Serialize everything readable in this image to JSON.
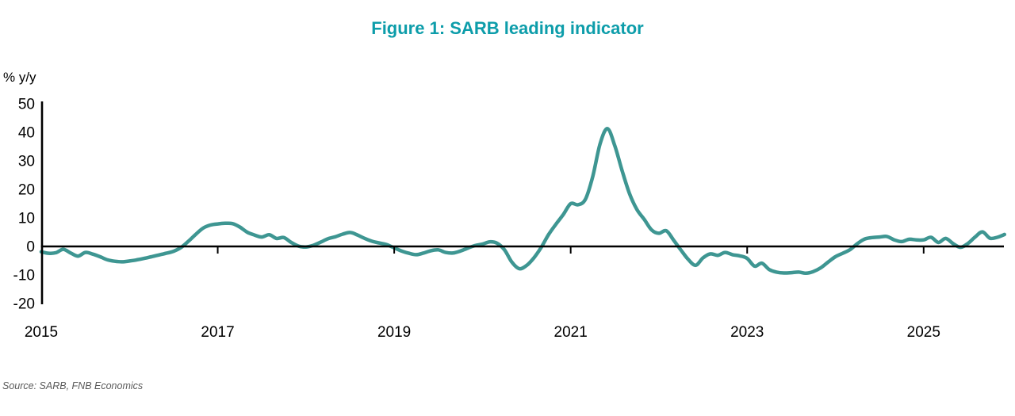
{
  "figure": {
    "title": "Figure 1: SARB leading indicator",
    "source": "Source: SARB, FNB Economics"
  },
  "colors": {
    "title_teal": "#0d9daa",
    "line_teal": "#3e9692",
    "axis_black": "#000000",
    "source_gray": "#5a5a5a"
  },
  "chart_data": {
    "type": "line",
    "title": "Figure 1: SARB leading indicator",
    "xlabel": "",
    "ylabel": "% y/y",
    "ylim": [
      -20,
      50
    ],
    "xlim": [
      2015,
      2026
    ],
    "grid": false,
    "legend": "none",
    "y_ticks": [
      50,
      40,
      30,
      20,
      10,
      0,
      -10,
      -20
    ],
    "x_ticks": [
      2015,
      2017,
      2019,
      2021,
      2023,
      2025
    ],
    "zero_line": true,
    "series": [
      {
        "name": "SARB leading indicator, % y/y",
        "color": "#3e9692",
        "start_year": 2015,
        "interval": "monthly",
        "values": [
          -1.9,
          -2.4,
          -2.2,
          -1.0,
          -2.3,
          -3.4,
          -2.1,
          -2.7,
          -3.6,
          -4.7,
          -5.2,
          -5.4,
          -5.1,
          -4.7,
          -4.2,
          -3.6,
          -3.0,
          -2.4,
          -1.7,
          -0.4,
          1.8,
          4.2,
          6.4,
          7.5,
          7.9,
          8.1,
          8.0,
          6.8,
          5.0,
          4.0,
          3.3,
          4.1,
          2.8,
          3.1,
          1.4,
          0.1,
          -0.2,
          0.4,
          1.5,
          2.7,
          3.4,
          4.3,
          4.9,
          4.0,
          2.8,
          1.8,
          1.2,
          0.6,
          -0.5,
          -1.6,
          -2.4,
          -2.9,
          -2.3,
          -1.5,
          -1.2,
          -2.1,
          -2.3,
          -1.6,
          -0.6,
          0.3,
          0.8,
          1.6,
          1.1,
          -1.2,
          -5.5,
          -7.8,
          -6.7,
          -4.0,
          -0.3,
          4.2,
          7.8,
          11.2,
          15.0,
          14.6,
          16.5,
          24.5,
          36.0,
          41.3,
          35.3,
          26.5,
          18.5,
          13.0,
          9.5,
          5.8,
          4.6,
          5.5,
          2.2,
          -1.3,
          -4.6,
          -6.6,
          -4.0,
          -2.6,
          -3.1,
          -2.1,
          -2.9,
          -3.3,
          -4.2,
          -6.9,
          -5.9,
          -8.1,
          -9.0,
          -9.3,
          -9.2,
          -9.0,
          -9.4,
          -8.8,
          -7.5,
          -5.5,
          -3.6,
          -2.4,
          -1.1,
          1.0,
          2.6,
          3.1,
          3.3,
          3.5,
          2.3,
          1.7,
          2.5,
          2.3,
          2.3,
          3.2,
          1.4,
          2.8,
          1.0,
          -0.3,
          1.0,
          3.3,
          5.1,
          2.9,
          3.2,
          4.2
        ]
      }
    ]
  }
}
